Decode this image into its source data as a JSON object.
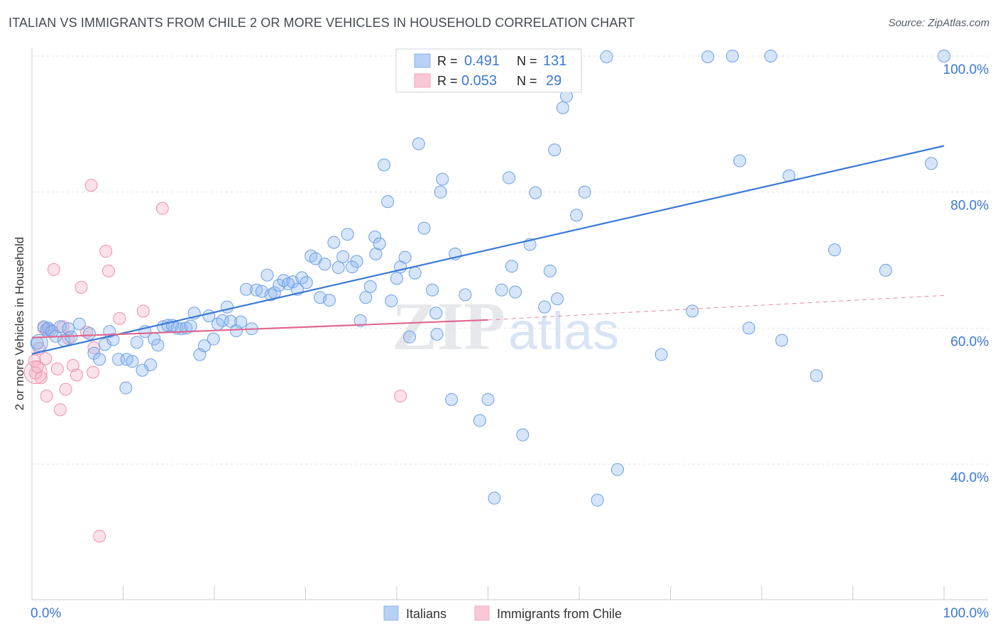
{
  "header": {
    "title": "ITALIAN VS IMMIGRANTS FROM CHILE 2 OR MORE VEHICLES IN HOUSEHOLD CORRELATION CHART",
    "source": "Source: ZipAtlas.com"
  },
  "watermark": {
    "zip": "ZIP",
    "atlas": "atlas"
  },
  "legend_box": {
    "rows": [
      {
        "r_label": "R = ",
        "r_value": "0.491",
        "n_label": "N = ",
        "n_value": "131",
        "color": "#8ab4f0"
      },
      {
        "r_label": "R = ",
        "r_value": "0.053",
        "n_label": "N = ",
        "n_value": "29",
        "color": "#f4a9bf"
      }
    ]
  },
  "bottom_legend": [
    {
      "label": "Italians",
      "color": "#8ab4f0"
    },
    {
      "label": "Immigrants from Chile",
      "color": "#f4a9bf"
    }
  ],
  "chart_data": {
    "type": "scatter",
    "title": "ITALIAN VS IMMIGRANTS FROM CHILE 2 OR MORE VEHICLES IN HOUSEHOLD CORRELATION CHART",
    "xlabel": "",
    "ylabel": "2 or more Vehicles in Household",
    "xlim": [
      0,
      100
    ],
    "ylim": [
      20,
      102
    ],
    "x_tick_labels": [
      "0.0%",
      "100.0%"
    ],
    "y_ticks": [
      40,
      60,
      80,
      100
    ],
    "y_tick_labels": [
      "40.0%",
      "60.0%",
      "80.0%",
      "100.0%"
    ],
    "grid": true,
    "legend_position": "bottom",
    "colors": {
      "italians": "#3b78d4",
      "chile": "#e0698f",
      "axis_text": "#3b78d4"
    },
    "series": [
      {
        "name": "Italians",
        "color": "#8ab4f0",
        "trend": {
          "x": [
            0,
            100
          ],
          "y": [
            56.2,
            86.8
          ]
        },
        "points": [
          [
            0.6,
            57.8
          ],
          [
            1.3,
            60.2
          ],
          [
            1.6,
            59.8
          ],
          [
            1.8,
            60.0
          ],
          [
            2.2,
            59.5
          ],
          [
            2.6,
            58.8
          ],
          [
            3.1,
            60.2
          ],
          [
            3.5,
            58.2
          ],
          [
            4.0,
            59.9
          ],
          [
            4.3,
            58.7
          ],
          [
            5.2,
            60.6
          ],
          [
            6.3,
            59.2
          ],
          [
            6.8,
            56.3
          ],
          [
            7.4,
            55.4
          ],
          [
            8.0,
            57.6
          ],
          [
            8.5,
            59.5
          ],
          [
            8.9,
            58.3
          ],
          [
            9.5,
            55.4
          ],
          [
            10.4,
            55.4
          ],
          [
            10.3,
            51.2
          ],
          [
            11.0,
            55.1
          ],
          [
            11.5,
            57.9
          ],
          [
            12.1,
            53.8
          ],
          [
            12.4,
            59.5
          ],
          [
            13.0,
            54.6
          ],
          [
            13.4,
            58.4
          ],
          [
            13.8,
            57.5
          ],
          [
            14.4,
            60.2
          ],
          [
            14.9,
            60.4
          ],
          [
            15.4,
            60.4
          ],
          [
            15.9,
            60.0
          ],
          [
            16.4,
            59.9
          ],
          [
            16.9,
            60.0
          ],
          [
            17.4,
            60.3
          ],
          [
            17.8,
            62.2
          ],
          [
            18.4,
            56.1
          ],
          [
            18.9,
            57.4
          ],
          [
            19.4,
            61.8
          ],
          [
            19.9,
            58.4
          ],
          [
            20.4,
            60.6
          ],
          [
            20.9,
            61.1
          ],
          [
            21.4,
            63.1
          ],
          [
            21.8,
            61.0
          ],
          [
            22.4,
            59.6
          ],
          [
            22.9,
            60.9
          ],
          [
            23.5,
            65.7
          ],
          [
            24.1,
            59.9
          ],
          [
            24.6,
            65.6
          ],
          [
            25.2,
            65.4
          ],
          [
            25.8,
            67.8
          ],
          [
            26.2,
            64.9
          ],
          [
            26.6,
            65.2
          ],
          [
            27.1,
            66.3
          ],
          [
            27.6,
            67.0
          ],
          [
            28.1,
            66.5
          ],
          [
            28.6,
            66.8
          ],
          [
            29.1,
            65.7
          ],
          [
            29.6,
            67.4
          ],
          [
            30.1,
            66.7
          ],
          [
            30.6,
            70.6
          ],
          [
            31.1,
            70.2
          ],
          [
            31.6,
            64.5
          ],
          [
            32.1,
            69.4
          ],
          [
            32.6,
            64.1
          ],
          [
            33.1,
            72.6
          ],
          [
            33.6,
            68.9
          ],
          [
            34.1,
            70.5
          ],
          [
            34.6,
            73.8
          ],
          [
            35.1,
            69.0
          ],
          [
            35.6,
            69.8
          ],
          [
            36.0,
            61.1
          ],
          [
            36.6,
            64.5
          ],
          [
            37.1,
            66.1
          ],
          [
            37.6,
            73.4
          ],
          [
            37.7,
            70.9
          ],
          [
            38.1,
            72.4
          ],
          [
            38.6,
            84.0
          ],
          [
            39.0,
            78.6
          ],
          [
            39.4,
            64.0
          ],
          [
            40.0,
            67.3
          ],
          [
            40.4,
            69.0
          ],
          [
            40.9,
            70.4
          ],
          [
            41.4,
            58.7
          ],
          [
            42.0,
            68.1
          ],
          [
            42.4,
            87.1
          ],
          [
            43.0,
            74.7
          ],
          [
            43.9,
            65.6
          ],
          [
            44.3,
            62.2
          ],
          [
            44.4,
            59.1
          ],
          [
            44.8,
            80.0
          ],
          [
            45.0,
            81.9
          ],
          [
            46.0,
            49.5
          ],
          [
            46.4,
            70.9
          ],
          [
            47.5,
            64.9
          ],
          [
            49.1,
            46.4
          ],
          [
            50.0,
            49.5
          ],
          [
            50.7,
            35.0
          ],
          [
            51.5,
            65.6
          ],
          [
            52.3,
            82.1
          ],
          [
            52.6,
            69.1
          ],
          [
            53.0,
            65.3
          ],
          [
            53.8,
            44.3
          ],
          [
            54.6,
            72.3
          ],
          [
            55.2,
            79.9
          ],
          [
            56.2,
            63.1
          ],
          [
            56.8,
            68.4
          ],
          [
            57.3,
            86.2
          ],
          [
            57.6,
            64.3
          ],
          [
            58.2,
            92.4
          ],
          [
            58.6,
            94.1
          ],
          [
            59.7,
            76.6
          ],
          [
            60.6,
            80.0
          ],
          [
            62.0,
            34.7
          ],
          [
            63.0,
            99.9
          ],
          [
            64.2,
            39.2
          ],
          [
            69.0,
            56.1
          ],
          [
            72.4,
            62.5
          ],
          [
            74.1,
            99.9
          ],
          [
            76.8,
            100.0
          ],
          [
            77.6,
            84.6
          ],
          [
            78.6,
            60.0
          ],
          [
            81.0,
            100.0
          ],
          [
            82.2,
            58.2
          ],
          [
            83.0,
            82.4
          ],
          [
            86.0,
            53.0
          ],
          [
            88.0,
            71.5
          ],
          [
            93.6,
            68.5
          ],
          [
            98.6,
            84.2
          ],
          [
            100.0,
            100.0
          ]
        ]
      },
      {
        "name": "Immigrants from Chile",
        "color": "#f4a9bf",
        "trend": {
          "x": [
            0,
            50
          ],
          "y": [
            58.6,
            61.2
          ]
        },
        "trend_extension": {
          "x": [
            50,
            100
          ],
          "y": [
            61.2,
            64.8
          ]
        },
        "points": [
          [
            0.3,
            55.2
          ],
          [
            0.4,
            53.4
          ],
          [
            0.6,
            54.3
          ],
          [
            1.0,
            52.7
          ],
          [
            1.3,
            60.0
          ],
          [
            1.6,
            50.0
          ],
          [
            2.0,
            59.7
          ],
          [
            2.4,
            68.6
          ],
          [
            2.8,
            54.0
          ],
          [
            3.1,
            48.0
          ],
          [
            3.4,
            60.2
          ],
          [
            3.7,
            51.0
          ],
          [
            4.0,
            58.5
          ],
          [
            4.5,
            54.5
          ],
          [
            4.9,
            53.1
          ],
          [
            5.4,
            66.0
          ],
          [
            6.0,
            59.4
          ],
          [
            6.5,
            81.0
          ],
          [
            6.7,
            53.5
          ],
          [
            6.8,
            57.1
          ],
          [
            7.4,
            29.4
          ],
          [
            8.1,
            71.3
          ],
          [
            8.4,
            68.4
          ],
          [
            9.6,
            61.4
          ],
          [
            12.2,
            62.5
          ],
          [
            14.3,
            77.6
          ],
          [
            40.4,
            50.0
          ],
          [
            0.8,
            57.0
          ],
          [
            1.5,
            55.5
          ]
        ]
      }
    ]
  }
}
